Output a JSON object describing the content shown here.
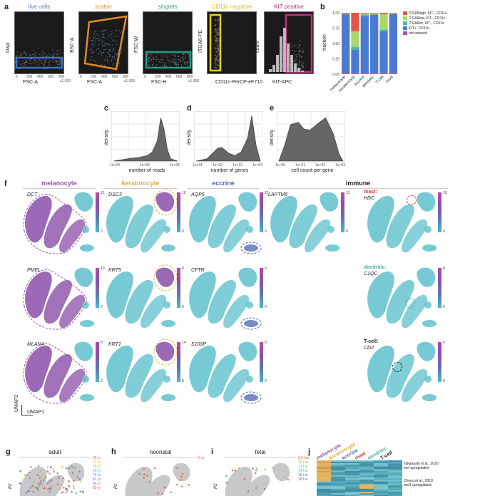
{
  "panel_a": {
    "letter": "a",
    "gates": [
      {
        "title": "live cells",
        "title_color": "#5b78c8",
        "xlabel": "FSC-A",
        "ylabel": "Dapi",
        "box_color": "#3b6fd1"
      },
      {
        "title": "scatter",
        "title_color": "#e38a23",
        "xlabel": "FSC-A",
        "ylabel": "BSC-A",
        "box_color": "#e38a23"
      },
      {
        "title": "singlets",
        "title_color": "#2ba88c",
        "xlabel": "FSC-H",
        "ylabel": "FSC-W",
        "box_color": "#1f9e89"
      },
      {
        "title": "CD11c negative",
        "title_color": "#d3c21f",
        "xlabel": "CD11c-PerCP-eF710",
        "ylabel": "ITGA6-PE",
        "box_color": "#e0d21a"
      },
      {
        "title": "KIT positive",
        "title_color": "#b0307a",
        "xlabel": "KIT-APC",
        "ylabel": "count",
        "box_color": "#c0307e"
      }
    ],
    "tick_unit": "x1,000",
    "ticks_x": [
      "0",
      "200",
      "400",
      "600",
      "800"
    ]
  },
  "panel_b": {
    "letter": "b",
    "ylabel": "fraction",
    "yticks": [
      "0.00",
      "0.25",
      "0.50",
      "0.75",
      "1.00"
    ],
    "legend": [
      {
        "label": "ITGA6high, KIT-, CD11c-",
        "color": "#e0554a"
      },
      {
        "label": "ITGA6low, KIT-, CD11c-",
        "color": "#a8d86a"
      },
      {
        "label": "ITGA6int, KIT-, CD11c-",
        "color": "#4bbf9a"
      },
      {
        "label": "KIT+, CD11c-",
        "color": "#4a7bd0"
      },
      {
        "label": "not indexed",
        "color": "#b04fb8"
      }
    ]
  },
  "chart_data": [
    {
      "type": "bar",
      "stacked": true,
      "categories": [
        "melanocyte",
        "keratinocyte",
        "eccrine",
        "dendritic",
        "T-cell",
        "mast"
      ],
      "ylabel": "fraction",
      "ylim": [
        0,
        1
      ],
      "series": [
        {
          "name": "not indexed",
          "values": [
            0.02,
            0.02,
            0.02,
            0.02,
            0.02,
            0.02
          ]
        },
        {
          "name": "KIT+, CD11c-",
          "values": [
            0.96,
            0.38,
            0.93,
            0.95,
            0.68,
            0.96
          ]
        },
        {
          "name": "ITGA6int, KIT-, CD11c-",
          "values": [
            0.0,
            0.05,
            0.02,
            0.0,
            0.03,
            0.0
          ]
        },
        {
          "name": "ITGA6low, KIT-, CD11c-",
          "values": [
            0.01,
            0.25,
            0.02,
            0.02,
            0.25,
            0.01
          ]
        },
        {
          "name": "ITGA6high, KIT-, CD11c-",
          "values": [
            0.01,
            0.3,
            0.01,
            0.01,
            0.02,
            0.01
          ]
        }
      ]
    },
    {
      "type": "area",
      "panel": "c",
      "xlabel": "number of reads",
      "ylabel": "density",
      "xticks": [
        "1e+04",
        "1e+05",
        "1e+06"
      ],
      "x": [
        3.0,
        3.5,
        4.0,
        4.5,
        5.0,
        5.3,
        5.6,
        5.8,
        6.0,
        6.2,
        6.4,
        6.8
      ],
      "y": [
        0.0,
        0.03,
        0.06,
        0.08,
        0.12,
        0.2,
        0.45,
        0.95,
        0.7,
        0.25,
        0.05,
        0.0
      ]
    },
    {
      "type": "area",
      "panel": "d",
      "xlabel": "number of genes",
      "ylabel": "density",
      "xticks": [
        "1e+01",
        "1e+02",
        "1e+03",
        "1e+04"
      ],
      "x": [
        1.0,
        1.5,
        2.0,
        2.2,
        2.5,
        2.8,
        3.1,
        3.4,
        3.6,
        3.8,
        4.0
      ],
      "y": [
        0.0,
        0.05,
        0.28,
        0.3,
        0.18,
        0.12,
        0.2,
        0.5,
        1.0,
        0.35,
        0.0
      ]
    },
    {
      "type": "area",
      "panel": "e",
      "xlabel": "cell count per gene",
      "ylabel": "density",
      "xticks": [
        "1e+00",
        "1e+01",
        "1e+02",
        "1e+03"
      ],
      "x": [
        0.0,
        0.3,
        0.6,
        1.0,
        1.3,
        1.6,
        2.0,
        2.4,
        2.8,
        3.1,
        3.3
      ],
      "y": [
        0.0,
        0.35,
        0.8,
        0.85,
        0.7,
        0.68,
        0.82,
        0.95,
        0.6,
        0.15,
        0.0
      ]
    }
  ],
  "panel_c": {
    "letter": "c"
  },
  "panel_d": {
    "letter": "d"
  },
  "panel_e": {
    "letter": "e"
  },
  "panel_f": {
    "letter": "f",
    "groups": [
      {
        "title": "melanocyte",
        "color": "#9b4fb0"
      },
      {
        "title": "keratinocyte",
        "color": "#d9b33a"
      },
      {
        "title": "eccrine",
        "color": "#4a63b5"
      },
      {
        "title": "immune",
        "color": "#222222"
      }
    ],
    "genes": {
      "mel": [
        "DCT",
        "PMEL",
        "MLANA"
      ],
      "ker": [
        "DSC3",
        "KRT5",
        "KRT1"
      ],
      "ecc": [
        "AQP5",
        "CFTR",
        "S100P"
      ],
      "imm": [
        "LAPTM5"
      ]
    },
    "immune_sub": [
      {
        "cell": "mast:",
        "gene": "HDC",
        "color": "#c73a3a"
      },
      {
        "cell": "dendritic:",
        "gene": "C1QC",
        "color": "#4bb0a8"
      },
      {
        "cell": "T-cell:",
        "gene": "CD2",
        "color": "#222222"
      }
    ],
    "cbar_max": [
      "12",
      "10",
      "8",
      "10",
      "8",
      "14",
      "12",
      "6",
      "8",
      "12",
      "10",
      "8",
      "6",
      "7"
    ],
    "umap1": "UMAP1",
    "umap2": "UMAP2"
  },
  "panel_g": {
    "letter": "g",
    "title": "adult",
    "ages": [
      "28 yr",
      "37 yr",
      "58 yr",
      "73 yr",
      "76 yr",
      "81 yr",
      "84 yr",
      "93 yr"
    ]
  },
  "panel_h": {
    "letter": "h",
    "title": "neonatal",
    "ages": [
      "0 yr"
    ]
  },
  "panel_i": {
    "letter": "i",
    "title": "fetal",
    "ages": [
      "9.5 f.w.",
      "10 f.w.",
      "12 f.w.",
      "14 f.w.",
      "16 f.w.",
      "18 f.w."
    ]
  },
  "panel_j": {
    "letter": "j",
    "cols": [
      {
        "label": "melanocyte",
        "color": "#9b4fb0"
      },
      {
        "label": "keratinocyte",
        "color": "#d9b33a"
      },
      {
        "label": "eccrine",
        "color": "#4a63b5"
      },
      {
        "label": "mast",
        "color": "#c73a3a"
      },
      {
        "label": "dendritic",
        "color": "#4bb0a8"
      },
      {
        "label": "T-cell",
        "color": "#222222"
      }
    ],
    "refs": [
      {
        "line1": "Takahashi et al., 2020",
        "line2": "mel upregulated"
      },
      {
        "line1": "Cheng et al., 2018",
        "line2": "mel1 upregulated"
      }
    ]
  },
  "umap_prefix": "P2"
}
